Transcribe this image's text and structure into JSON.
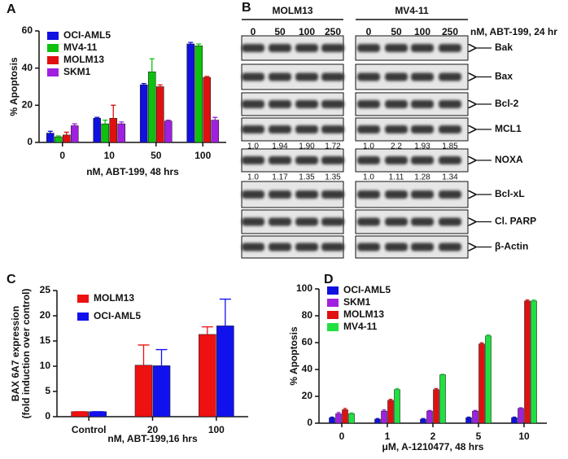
{
  "chart_data": [
    {
      "type": "bar",
      "panel": "A",
      "ylabel": "% Apoptosis",
      "xlabel": "nM, ABT-199, 48 hrs",
      "categories": [
        "0",
        "10",
        "50",
        "100"
      ],
      "series": [
        {
          "name": "OCI-AML5",
          "color": "#1010e0",
          "values": [
            5,
            13,
            31,
            53
          ],
          "errors": [
            1,
            0.5,
            0.7,
            0.8
          ]
        },
        {
          "name": "MV4-11",
          "color": "#10c010",
          "values": [
            3,
            10,
            38,
            52
          ],
          "errors": [
            0.5,
            2,
            7,
            1
          ]
        },
        {
          "name": "MOLM13",
          "color": "#e01010",
          "values": [
            4,
            13,
            30,
            35
          ],
          "errors": [
            1.5,
            7,
            1,
            0.5
          ]
        },
        {
          "name": "SKM1",
          "color": "#a020e0",
          "values": [
            9,
            10,
            11.5,
            12
          ],
          "errors": [
            1,
            1,
            0.5,
            1.5
          ]
        }
      ],
      "ylim": [
        0,
        60
      ],
      "yticks": [
        0,
        20,
        40,
        60
      ]
    },
    {
      "type": "bar",
      "panel": "C",
      "ylabel": [
        "BAX 6A7 expression",
        "(fold induction over control)"
      ],
      "xlabel": "nM, ABT-199,16 hrs",
      "categories": [
        "Control",
        "20",
        "100"
      ],
      "series": [
        {
          "name": "MOLM13",
          "color": "#ee1111",
          "values": [
            1,
            10.2,
            16.3
          ],
          "errors": [
            0,
            4,
            1.5
          ]
        },
        {
          "name": "OCI-AML5",
          "color": "#1111ee",
          "values": [
            1,
            10.1,
            18
          ],
          "errors": [
            0,
            3.2,
            5.3
          ]
        }
      ],
      "ylim": [
        0,
        25
      ],
      "yticks": [
        0,
        5,
        10,
        15,
        20,
        25
      ]
    },
    {
      "type": "bar",
      "panel": "D",
      "ylabel": "% Apoptosis",
      "xlabel": "μM, A-1210477, 48 hrs",
      "categories": [
        "0",
        "1",
        "2",
        "5",
        "10"
      ],
      "series": [
        {
          "name": "OCI-AML5",
          "color": "#1010e0",
          "values": [
            4,
            3,
            3,
            4,
            4
          ],
          "errors": [
            0.5,
            0.5,
            0.5,
            0.5,
            0.5
          ]
        },
        {
          "name": "SKM1",
          "color": "#a020e0",
          "values": [
            7,
            9,
            9,
            9,
            11
          ],
          "errors": [
            1,
            0.8,
            0.5,
            0.5,
            0.5
          ]
        },
        {
          "name": "MOLM13",
          "color": "#e01010",
          "values": [
            10,
            17,
            25,
            59,
            91
          ],
          "errors": [
            1,
            0.8,
            0.8,
            0.8,
            0.8
          ]
        },
        {
          "name": "MV4-11",
          "color": "#20e040",
          "values": [
            7,
            25,
            36,
            65,
            91
          ],
          "errors": [
            0.8,
            0.8,
            0.5,
            0.8,
            0.8
          ]
        }
      ],
      "ylim": [
        0,
        100
      ],
      "yticks": [
        0,
        20,
        40,
        60,
        80,
        100
      ]
    }
  ],
  "blot": {
    "panel": "B",
    "treatment": "nM, ABT-199, 24 hr",
    "groups": [
      {
        "name": "MOLM13",
        "lanes": [
          "0",
          "50",
          "100",
          "250"
        ]
      },
      {
        "name": "MV4-11",
        "lanes": [
          "0",
          "50",
          "100",
          "250"
        ]
      }
    ],
    "rows": [
      {
        "label": "Bak"
      },
      {
        "label": "Bax"
      },
      {
        "label": "Bcl-2"
      },
      {
        "label": "MCL1",
        "quant": [
          [
            "1.0",
            "1.94",
            "1.90",
            "1.72"
          ],
          [
            "1.0",
            "2.2",
            "1.93",
            "1.85"
          ]
        ]
      },
      {
        "label": "NOXA",
        "quant": [
          [
            "1.0",
            "1.17",
            "1.35",
            "1.35"
          ],
          [
            "1.0",
            "1.11",
            "1.28",
            "1.34"
          ]
        ]
      },
      {
        "label": "Bcl-xL"
      },
      {
        "label": "Cl. PARP"
      },
      {
        "label": "β-Actin"
      }
    ]
  }
}
